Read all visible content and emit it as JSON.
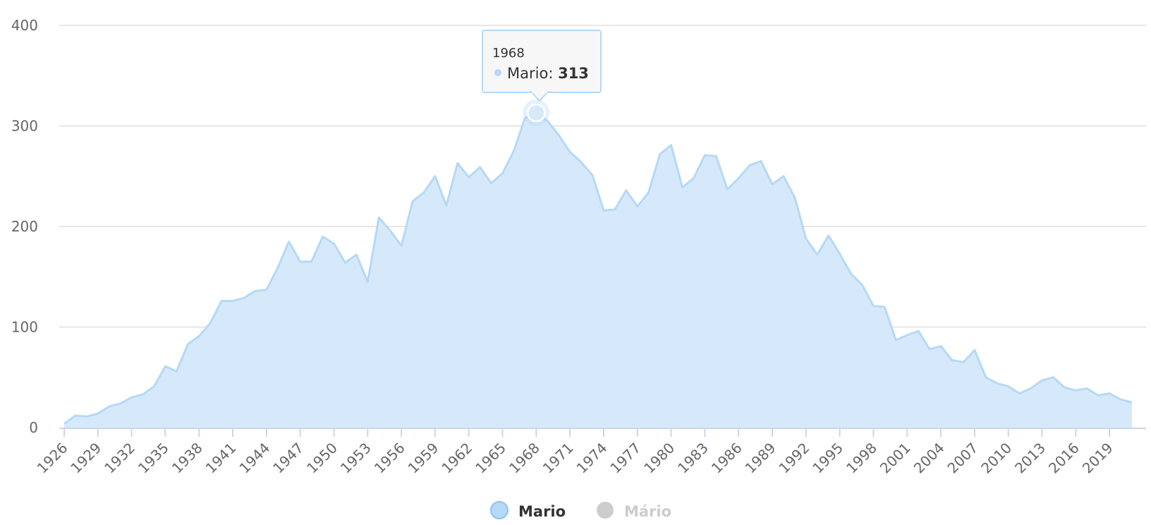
{
  "colors": {
    "series_fill": "#d6e9fa",
    "series_line": "#b5d9f7",
    "axis_line": "#ccd6eb",
    "grid": "#e6e6e6",
    "text": "#666666",
    "legend_active": "#333333",
    "legend_inactive": "#cccccc",
    "inactive_marker": "#cccccc"
  },
  "tooltip": {
    "year": "1968",
    "series_label": "Mario",
    "value_text": "313"
  },
  "legend": [
    {
      "name": "Mario",
      "active": true
    },
    {
      "name": "Mário",
      "active": false
    }
  ],
  "chart_data": {
    "type": "area",
    "ylim": [
      0,
      400
    ],
    "y_ticks": [
      0,
      100,
      200,
      300,
      400
    ],
    "x_tick_labels": [
      "1926",
      "1929",
      "1932",
      "1935",
      "1938",
      "1941",
      "1944",
      "1947",
      "1950",
      "1953",
      "1956",
      "1959",
      "1962",
      "1965",
      "1968",
      "1971",
      "1974",
      "1977",
      "1980",
      "1983",
      "1986",
      "1989",
      "1992",
      "1995",
      "1998",
      "2001",
      "2004",
      "2007",
      "2010",
      "2013",
      "2016",
      "2019"
    ],
    "grid": true,
    "legend_position": "bottom-center",
    "series": [
      {
        "name": "Mario",
        "x": [
          1926,
          1927,
          1928,
          1929,
          1930,
          1931,
          1932,
          1933,
          1934,
          1935,
          1936,
          1937,
          1938,
          1939,
          1940,
          1941,
          1942,
          1943,
          1944,
          1945,
          1946,
          1947,
          1948,
          1949,
          1950,
          1951,
          1952,
          1953,
          1954,
          1955,
          1956,
          1957,
          1958,
          1959,
          1960,
          1961,
          1962,
          1963,
          1964,
          1965,
          1966,
          1967,
          1968,
          1969,
          1970,
          1971,
          1972,
          1973,
          1974,
          1975,
          1976,
          1977,
          1978,
          1979,
          1980,
          1981,
          1982,
          1983,
          1984,
          1985,
          1986,
          1987,
          1988,
          1989,
          1990,
          1991,
          1992,
          1993,
          1994,
          1995,
          1996,
          1997,
          1998,
          1999,
          2000,
          2001,
          2002,
          2003,
          2004,
          2005,
          2006,
          2007,
          2008,
          2009,
          2010,
          2011,
          2012,
          2013,
          2014,
          2015,
          2016,
          2017,
          2018,
          2019,
          2020,
          2021
        ],
        "values": [
          4,
          12,
          11,
          14,
          21,
          24,
          30,
          33,
          41,
          61,
          56,
          83,
          91,
          104,
          126,
          126,
          129,
          136,
          137,
          159,
          185,
          165,
          165,
          190,
          183,
          164,
          172,
          145,
          209,
          196,
          181,
          225,
          234,
          250,
          221,
          263,
          249,
          259,
          243,
          253,
          275,
          308,
          313,
          305,
          291,
          274,
          264,
          251,
          216,
          217,
          236,
          220,
          234,
          272,
          281,
          239,
          248,
          271,
          270,
          237,
          248,
          261,
          265,
          242,
          250,
          229,
          188,
          172,
          191,
          173,
          153,
          142,
          121,
          120,
          87,
          92,
          96,
          78,
          81,
          67,
          65,
          77,
          50,
          44,
          41,
          34,
          39,
          47,
          50,
          40,
          37,
          39,
          32,
          34,
          28,
          25
        ]
      }
    ]
  }
}
